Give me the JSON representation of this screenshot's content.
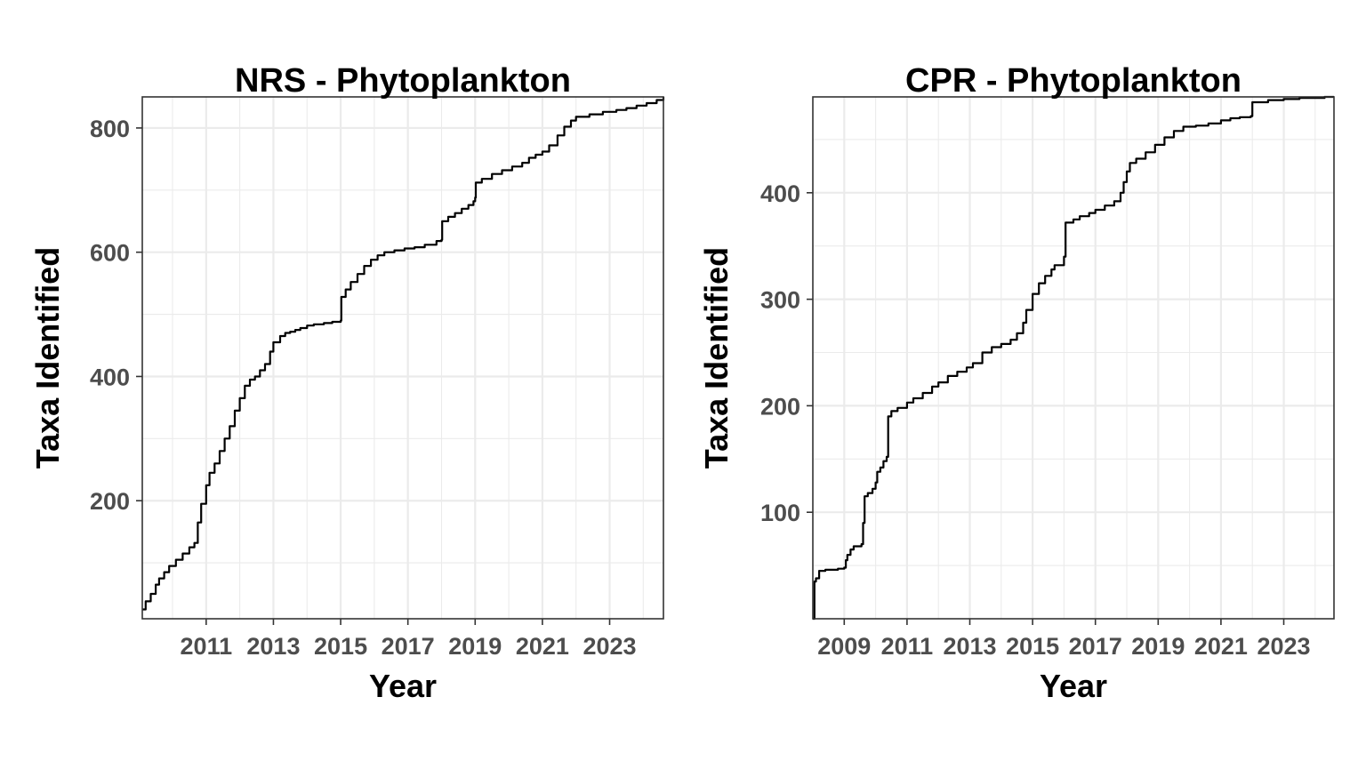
{
  "chart_data": [
    {
      "type": "line",
      "title": "NRS - Phytoplankton",
      "xlabel": "Year",
      "ylabel": "Taxa Identified",
      "xlim": [
        2009.1,
        2024.6
      ],
      "ylim": [
        10,
        850
      ],
      "x_ticks": [
        2011,
        2013,
        2015,
        2017,
        2019,
        2021,
        2023
      ],
      "y_ticks": [
        200,
        400,
        600,
        800
      ],
      "grid": true,
      "legend": "none",
      "series": [
        {
          "x": [
            2009.1,
            2009.2,
            2009.35,
            2009.5,
            2009.6,
            2009.75,
            2009.9,
            2010.1,
            2010.3,
            2010.5,
            2010.65,
            2010.75,
            2010.85,
            2011.0,
            2011.1,
            2011.25,
            2011.4,
            2011.55,
            2011.7,
            2011.85,
            2012.0,
            2012.15,
            2012.3,
            2012.45,
            2012.6,
            2012.75,
            2012.9,
            2013.0,
            2013.2,
            2013.35,
            2013.5,
            2013.65,
            2013.8,
            2014.0,
            2014.2,
            2014.5,
            2014.75,
            2015.0,
            2015.02,
            2015.15,
            2015.3,
            2015.5,
            2015.7,
            2015.9,
            2016.1,
            2016.3,
            2016.6,
            2016.9,
            2017.2,
            2017.5,
            2017.85,
            2018.0,
            2018.02,
            2018.2,
            2018.4,
            2018.6,
            2018.8,
            2018.95,
            2019.0,
            2019.02,
            2019.2,
            2019.5,
            2019.8,
            2020.1,
            2020.4,
            2020.6,
            2020.8,
            2021.0,
            2021.2,
            2021.45,
            2021.65,
            2021.85,
            2022.0,
            2022.4,
            2022.8,
            2023.2,
            2023.5,
            2023.8,
            2024.1,
            2024.4,
            2024.6
          ],
          "y": [
            25,
            38,
            50,
            65,
            75,
            85,
            95,
            105,
            115,
            125,
            132,
            165,
            195,
            225,
            245,
            260,
            280,
            300,
            320,
            345,
            365,
            385,
            395,
            400,
            410,
            420,
            440,
            455,
            465,
            470,
            472,
            475,
            478,
            482,
            484,
            486,
            488,
            490,
            528,
            540,
            552,
            565,
            578,
            588,
            595,
            600,
            603,
            606,
            608,
            612,
            618,
            620,
            650,
            657,
            663,
            670,
            676,
            682,
            688,
            712,
            718,
            726,
            732,
            738,
            744,
            752,
            757,
            762,
            772,
            788,
            802,
            812,
            818,
            822,
            826,
            829,
            832,
            836,
            840,
            845,
            850
          ]
        }
      ]
    },
    {
      "type": "line",
      "title": "CPR - Phytoplankton",
      "xlabel": "Year",
      "ylabel": "Taxa Identified",
      "xlim": [
        2008.0,
        2024.6
      ],
      "ylim": [
        0,
        490
      ],
      "x_ticks": [
        2009,
        2011,
        2013,
        2015,
        2017,
        2019,
        2021,
        2023
      ],
      "y_ticks": [
        100,
        200,
        300,
        400
      ],
      "grid": true,
      "legend": "none",
      "series": [
        {
          "x": [
            2008.0,
            2008.05,
            2008.1,
            2008.2,
            2008.4,
            2008.8,
            2009.0,
            2009.05,
            2009.1,
            2009.2,
            2009.3,
            2009.55,
            2009.6,
            2009.65,
            2009.75,
            2009.9,
            2010.0,
            2010.05,
            2010.15,
            2010.25,
            2010.35,
            2010.4,
            2010.5,
            2010.7,
            2011.0,
            2011.2,
            2011.5,
            2011.8,
            2012.0,
            2012.3,
            2012.6,
            2012.9,
            2013.1,
            2013.4,
            2013.7,
            2014.0,
            2014.3,
            2014.5,
            2014.7,
            2014.8,
            2015.0,
            2015.2,
            2015.4,
            2015.6,
            2015.7,
            2016.0,
            2016.05,
            2016.3,
            2016.5,
            2016.8,
            2017.0,
            2017.3,
            2017.6,
            2017.8,
            2017.9,
            2018.0,
            2018.1,
            2018.3,
            2018.6,
            2018.9,
            2019.2,
            2019.5,
            2019.8,
            2020.2,
            2020.6,
            2021.0,
            2021.3,
            2021.6,
            2021.95,
            2022.0,
            2022.5,
            2023.0,
            2023.5,
            2024.0,
            2024.3,
            2024.6
          ],
          "y": [
            0,
            35,
            38,
            45,
            46,
            47,
            48,
            55,
            60,
            65,
            68,
            70,
            90,
            115,
            118,
            122,
            128,
            138,
            142,
            148,
            152,
            190,
            195,
            198,
            203,
            207,
            212,
            218,
            222,
            228,
            232,
            236,
            240,
            250,
            255,
            258,
            262,
            268,
            278,
            290,
            305,
            315,
            322,
            328,
            332,
            340,
            372,
            375,
            378,
            381,
            384,
            388,
            392,
            400,
            410,
            420,
            428,
            432,
            438,
            445,
            452,
            458,
            462,
            463,
            465,
            468,
            470,
            471,
            472,
            485,
            487,
            488,
            489,
            489,
            490,
            490
          ]
        }
      ]
    }
  ]
}
